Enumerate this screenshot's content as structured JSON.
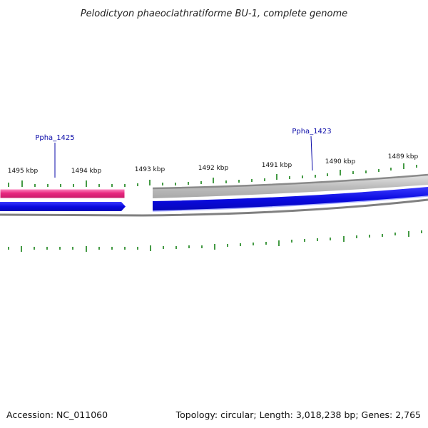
{
  "title": "Pelodictyon phaeoclathratiforme BU-1, complete genome",
  "tick_labels": [
    "1495 kbp",
    "1494 kbp",
    "1493 kbp",
    "1492 kbp",
    "1491 kbp",
    "1490 kbp",
    "1489 kbp"
  ],
  "gene_labels": [
    "Ppha_1425",
    "Ppha_1423"
  ],
  "footer": {
    "accession": "Accession: NC_011060",
    "summary": "Topology: circular; Length: 3,018,238 bp; Genes: 2,765"
  },
  "colors": {
    "title_text": "#222222",
    "gene_label": "#0a0aa8",
    "tick_green": "#2f8f2f",
    "feature_pink": "#e8287f",
    "feature_grey": "#b8b8b8",
    "feature_blue": "#0a0ae0",
    "backbone": "#808080"
  }
}
